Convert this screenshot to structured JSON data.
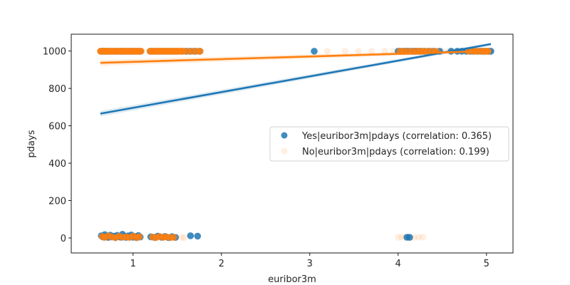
{
  "chart_data": {
    "type": "scatter",
    "xlabel": "euribor3m",
    "ylabel": "pdays",
    "xlim": [
      0.3,
      5.3
    ],
    "ylim": [
      -80,
      1090
    ],
    "xticks": [
      1,
      2,
      3,
      4,
      5
    ],
    "yticks": [
      0,
      200,
      400,
      600,
      800,
      1000
    ],
    "grid": false,
    "legend_position": "center-right",
    "series": [
      {
        "name": "Yes|euribor3m|pdays (correlation: 0.365)",
        "color": "#1f77b4",
        "point_opacity": 0.85,
        "regression": {
          "x": [
            0.63,
            5.05
          ],
          "y": [
            665,
            1037
          ]
        },
        "points": [
          [
            0.64,
            999
          ],
          [
            0.66,
            999
          ],
          [
            0.68,
            999
          ],
          [
            0.7,
            999
          ],
          [
            0.72,
            999
          ],
          [
            0.75,
            999
          ],
          [
            0.78,
            999
          ],
          [
            0.8,
            999
          ],
          [
            0.83,
            999
          ],
          [
            0.86,
            999
          ],
          [
            0.88,
            999
          ],
          [
            0.9,
            999
          ],
          [
            0.93,
            999
          ],
          [
            0.96,
            999
          ],
          [
            0.98,
            999
          ],
          [
            1.0,
            999
          ],
          [
            1.03,
            999
          ],
          [
            1.05,
            999
          ],
          [
            1.08,
            999
          ],
          [
            1.2,
            999
          ],
          [
            1.23,
            999
          ],
          [
            1.26,
            999
          ],
          [
            1.29,
            999
          ],
          [
            1.32,
            999
          ],
          [
            1.35,
            999
          ],
          [
            1.38,
            999
          ],
          [
            1.41,
            999
          ],
          [
            1.44,
            999
          ],
          [
            1.47,
            999
          ],
          [
            1.5,
            999
          ],
          [
            1.55,
            999
          ],
          [
            1.6,
            999
          ],
          [
            1.65,
            999
          ],
          [
            1.7,
            999
          ],
          [
            1.75,
            999
          ],
          [
            3.05,
            999
          ],
          [
            4.0,
            999
          ],
          [
            4.02,
            999
          ],
          [
            4.05,
            999
          ],
          [
            4.08,
            999
          ],
          [
            4.1,
            999
          ],
          [
            4.12,
            999
          ],
          [
            4.15,
            999
          ],
          [
            4.18,
            999
          ],
          [
            4.2,
            999
          ],
          [
            4.23,
            999
          ],
          [
            4.26,
            999
          ],
          [
            4.3,
            999
          ],
          [
            4.35,
            999
          ],
          [
            4.4,
            999
          ],
          [
            4.47,
            999
          ],
          [
            4.6,
            999
          ],
          [
            4.67,
            999
          ],
          [
            4.72,
            999
          ],
          [
            4.77,
            999
          ],
          [
            4.82,
            999
          ],
          [
            4.86,
            999
          ],
          [
            4.9,
            999
          ],
          [
            4.94,
            999
          ],
          [
            4.97,
            999
          ],
          [
            5.0,
            999
          ],
          [
            5.03,
            999
          ],
          [
            5.05,
            999
          ],
          [
            0.64,
            12
          ],
          [
            0.66,
            5
          ],
          [
            0.68,
            18
          ],
          [
            0.7,
            8
          ],
          [
            0.72,
            3
          ],
          [
            0.74,
            15
          ],
          [
            0.76,
            6
          ],
          [
            0.78,
            10
          ],
          [
            0.8,
            2
          ],
          [
            0.82,
            14
          ],
          [
            0.84,
            7
          ],
          [
            0.86,
            4
          ],
          [
            0.88,
            20
          ],
          [
            0.9,
            9
          ],
          [
            0.92,
            3
          ],
          [
            0.94,
            11
          ],
          [
            0.96,
            6
          ],
          [
            0.98,
            16
          ],
          [
            1.0,
            4
          ],
          [
            1.02,
            8
          ],
          [
            1.04,
            2
          ],
          [
            1.06,
            13
          ],
          [
            1.08,
            5
          ],
          [
            1.2,
            6
          ],
          [
            1.24,
            3
          ],
          [
            1.28,
            10
          ],
          [
            1.32,
            4
          ],
          [
            1.36,
            8
          ],
          [
            1.4,
            2
          ],
          [
            1.44,
            7
          ],
          [
            1.48,
            3
          ],
          [
            1.65,
            12
          ],
          [
            1.73,
            10
          ],
          [
            4.1,
            4
          ],
          [
            4.13,
            3
          ]
        ]
      },
      {
        "name": "No|euribor3m|pdays (correlation: 0.199)",
        "color": "#ff7f0e",
        "legend_opacity": 0.12,
        "point_opacity": 0.85,
        "regression": {
          "x": [
            0.63,
            5.05
          ],
          "y": [
            937,
            1000
          ]
        },
        "points": [
          [
            0.63,
            999
          ],
          [
            0.65,
            999
          ],
          [
            0.67,
            999
          ],
          [
            0.69,
            999
          ],
          [
            0.71,
            999
          ],
          [
            0.73,
            999
          ],
          [
            0.75,
            999
          ],
          [
            0.77,
            999
          ],
          [
            0.79,
            999
          ],
          [
            0.81,
            999
          ],
          [
            0.83,
            999
          ],
          [
            0.85,
            999
          ],
          [
            0.87,
            999
          ],
          [
            0.89,
            999
          ],
          [
            0.91,
            999
          ],
          [
            0.93,
            999
          ],
          [
            0.95,
            999
          ],
          [
            0.97,
            999
          ],
          [
            0.99,
            999
          ],
          [
            1.01,
            999
          ],
          [
            1.03,
            999
          ],
          [
            1.05,
            999
          ],
          [
            1.07,
            999
          ],
          [
            1.09,
            999
          ],
          [
            1.19,
            999
          ],
          [
            1.21,
            999
          ],
          [
            1.23,
            999
          ],
          [
            1.25,
            999
          ],
          [
            1.27,
            999
          ],
          [
            1.29,
            999
          ],
          [
            1.31,
            999
          ],
          [
            1.33,
            999
          ],
          [
            1.35,
            999
          ],
          [
            1.37,
            999
          ],
          [
            1.39,
            999
          ],
          [
            1.41,
            999
          ],
          [
            1.43,
            999
          ],
          [
            1.45,
            999
          ],
          [
            1.47,
            999
          ],
          [
            1.49,
            999
          ],
          [
            1.51,
            999
          ],
          [
            1.53,
            999
          ],
          [
            1.55,
            999
          ],
          [
            1.57,
            999
          ],
          [
            1.62,
            999
          ],
          [
            1.67,
            999
          ],
          [
            1.72,
            999
          ],
          [
            1.76,
            999
          ],
          [
            4.02,
            999
          ],
          [
            4.06,
            999
          ],
          [
            4.11,
            999
          ],
          [
            4.16,
            999
          ],
          [
            4.21,
            999
          ],
          [
            4.25,
            999
          ],
          [
            4.29,
            999
          ],
          [
            4.33,
            999
          ],
          [
            4.38,
            999
          ],
          [
            4.43,
            999
          ],
          [
            4.8,
            999
          ],
          [
            4.85,
            999
          ],
          [
            4.88,
            999
          ],
          [
            4.92,
            999
          ],
          [
            4.96,
            999
          ],
          [
            4.99,
            999
          ],
          [
            5.02,
            999
          ],
          [
            0.65,
            8
          ],
          [
            0.68,
            3
          ],
          [
            0.72,
            12
          ],
          [
            0.76,
            5
          ],
          [
            0.8,
            2
          ],
          [
            0.84,
            9
          ],
          [
            0.88,
            4
          ],
          [
            0.92,
            6
          ],
          [
            0.96,
            3
          ],
          [
            1.0,
            10
          ],
          [
            1.04,
            2
          ],
          [
            1.07,
            7
          ],
          [
            1.22,
            5
          ],
          [
            1.26,
            2
          ],
          [
            1.3,
            8
          ],
          [
            1.34,
            3
          ],
          [
            1.38,
            6
          ],
          [
            1.42,
            2
          ],
          [
            1.46,
            4
          ]
        ]
      },
      {
        "name": "",
        "color": "#ff7f0e",
        "point_opacity": 0.12,
        "points": [
          [
            3.2,
            999
          ],
          [
            3.4,
            999
          ],
          [
            3.55,
            999
          ],
          [
            3.7,
            999
          ],
          [
            3.85,
            999
          ],
          [
            3.95,
            999
          ],
          [
            4.5,
            999
          ],
          [
            4.58,
            999
          ],
          [
            4.65,
            999
          ],
          [
            4.73,
            999
          ],
          [
            4.0,
            3
          ],
          [
            4.04,
            5
          ],
          [
            4.08,
            2
          ],
          [
            4.12,
            6
          ],
          [
            4.18,
            3
          ],
          [
            4.23,
            4
          ],
          [
            4.28,
            5
          ],
          [
            1.55,
            4
          ],
          [
            1.58,
            2
          ]
        ]
      }
    ]
  }
}
